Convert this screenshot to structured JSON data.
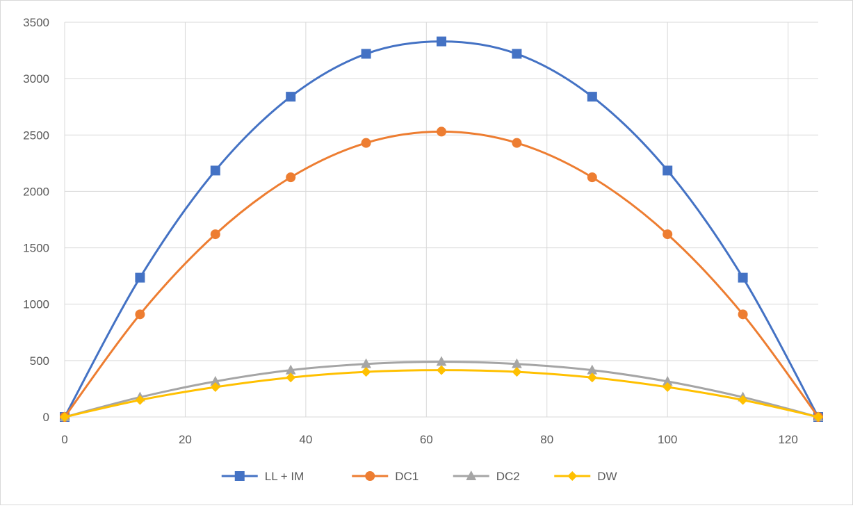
{
  "chart_data": {
    "type": "line",
    "title": "",
    "xlabel": "",
    "ylabel": "",
    "xlim": [
      0,
      125
    ],
    "ylim": [
      0,
      3500
    ],
    "x_ticks": [
      0,
      20,
      40,
      60,
      80,
      100,
      120
    ],
    "y_ticks": [
      0,
      500,
      1000,
      1500,
      2000,
      2500,
      3000,
      3500
    ],
    "grid": true,
    "smooth": true,
    "legend": "bottom",
    "x": [
      0,
      12.5,
      25,
      37.5,
      50,
      62.5,
      75,
      87.5,
      100,
      112.5,
      125
    ],
    "series": [
      {
        "name": "LL + IM",
        "color": "#4472c4",
        "marker": "square",
        "values": [
          0,
          1235,
          2185,
          2840,
          3220,
          3330,
          3220,
          2840,
          2185,
          1235,
          0
        ]
      },
      {
        "name": "DC1",
        "color": "#ed7d31",
        "marker": "circle",
        "values": [
          0,
          910,
          1620,
          2125,
          2430,
          2530,
          2430,
          2125,
          1620,
          910,
          0
        ]
      },
      {
        "name": "DC2",
        "color": "#a5a5a5",
        "marker": "triangle",
        "values": [
          0,
          175,
          315,
          415,
          470,
          490,
          470,
          415,
          315,
          175,
          0
        ]
      },
      {
        "name": "DW",
        "color": "#ffc000",
        "marker": "diamond",
        "values": [
          0,
          150,
          265,
          350,
          400,
          415,
          400,
          350,
          265,
          150,
          0
        ]
      }
    ]
  }
}
